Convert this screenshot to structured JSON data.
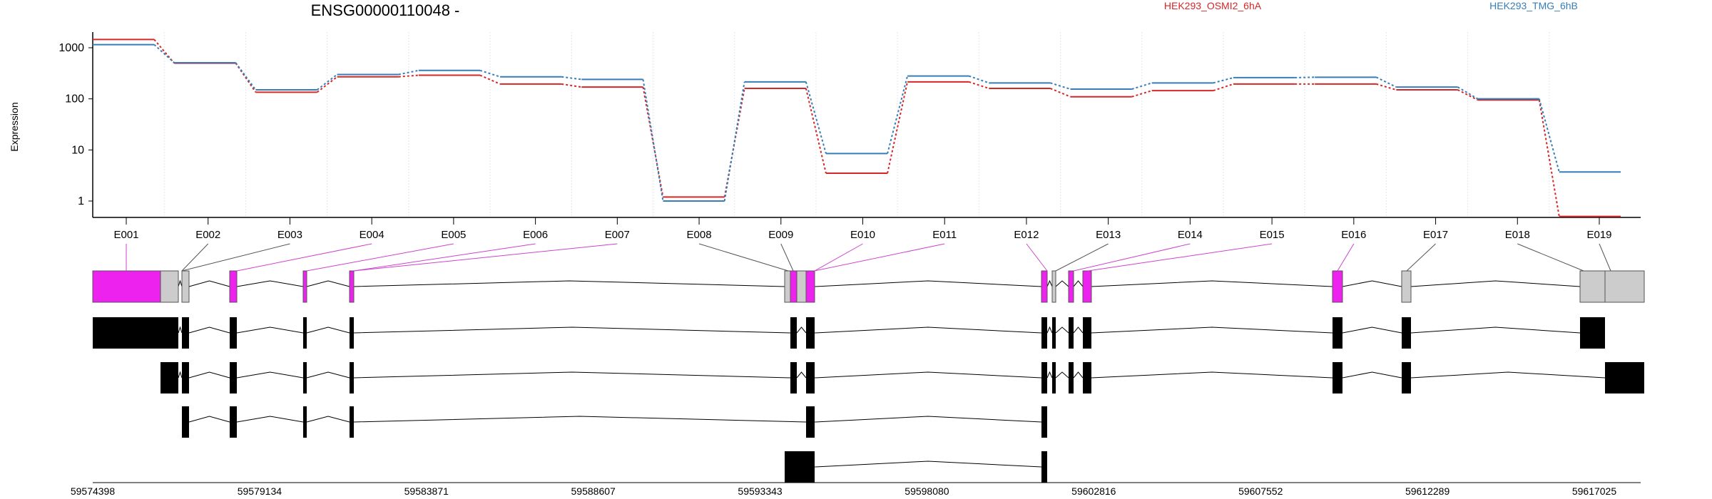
{
  "chart_data": {
    "type": "line",
    "title": "ENSG00000110048 -",
    "ylabel": "Expression",
    "y_scale": "log",
    "y_ticks": [
      "1000",
      "100",
      "10",
      "1"
    ],
    "exons": [
      "E001",
      "E002",
      "E003",
      "E004",
      "E005",
      "E006",
      "E007",
      "E008",
      "E009",
      "E010",
      "E011",
      "E012",
      "E013",
      "E014",
      "E015",
      "E016",
      "E017",
      "E018",
      "E019"
    ],
    "series": [
      {
        "name": "HEK293_OSMI2_6hA",
        "color": "#d62728",
        "values": [
          1450,
          500,
          135,
          270,
          290,
          195,
          170,
          1.2,
          160,
          3.5,
          215,
          160,
          110,
          145,
          195,
          195,
          150,
          95,
          0.5
        ]
      },
      {
        "name": "HEK293_TMG_6hB",
        "color": "#377eb8",
        "values": [
          1150,
          510,
          150,
          300,
          360,
          270,
          240,
          1.0,
          215,
          8.5,
          280,
          205,
          155,
          205,
          260,
          265,
          170,
          100,
          3.7
        ]
      }
    ],
    "genomic_axis_ticks": [
      "59574398",
      "59579134",
      "59583871",
      "59588607",
      "59593343",
      "59598080",
      "59602816",
      "59607552",
      "59612289",
      "59617025"
    ],
    "exon_highlight_color": "#ee22ee",
    "exon_base_color": "#cccccc",
    "grid": true
  }
}
